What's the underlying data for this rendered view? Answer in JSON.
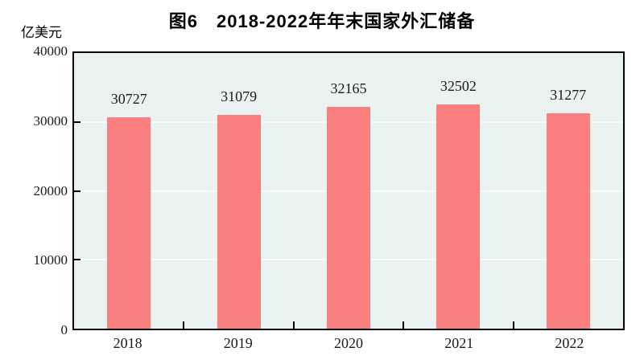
{
  "page": {
    "background": "#ffffff"
  },
  "chart_data": {
    "type": "bar",
    "title": "图6　2018-2022年年末国家外汇储备",
    "unit_label": "亿美元",
    "categories": [
      "2018",
      "2019",
      "2020",
      "2021",
      "2022"
    ],
    "values": [
      30727,
      31079,
      32165,
      32502,
      31277
    ],
    "y_ticks": [
      0,
      10000,
      20000,
      30000,
      40000
    ],
    "ylim": [
      0,
      40000
    ],
    "xlabel": "",
    "ylabel": "亿美元",
    "legend": "none",
    "grid": "horizontal-faint",
    "bar_color": "#FA7F7F",
    "plot_background": "#EAF3F1",
    "gridline_color": "#F8FCFB",
    "axis_color": "#000000",
    "text_color": "#1a1a1a"
  }
}
